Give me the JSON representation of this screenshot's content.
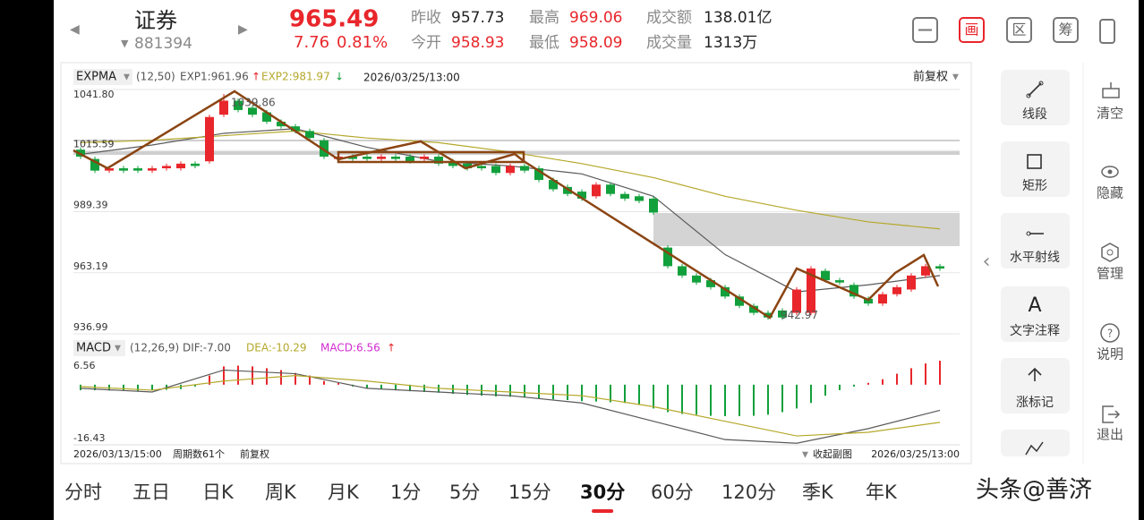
{
  "header": {
    "name": "证券",
    "code": "881394",
    "price": 965.49,
    "change": 7.76,
    "change_pct": "0.81%",
    "stats": [
      {
        "label": "昨收",
        "value": 957.73
      },
      {
        "label": "今开",
        "value": 958.93
      },
      {
        "label": "最高",
        "value": 969.06
      },
      {
        "label": "最低",
        "value": 958.09
      },
      {
        "label": "成交额",
        "value": "138.01亿"
      },
      {
        "label": "成交量",
        "value": "1313万"
      }
    ],
    "tools": [
      "画",
      "区",
      "筹"
    ]
  },
  "chart_data": [
    {
      "type": "candlestick",
      "indicator": "EXPMA",
      "params": "(12,50)",
      "time": "2026/03/25/13:00",
      "adjust": "前复权",
      "ylim": [
        936.99,
        1041.8
      ],
      "yticks": [
        {
          "value": 1041.8,
          "label": "1041.80"
        },
        1015.59,
        989.39,
        963.19,
        936.99
      ],
      "grid": true,
      "up_color": "#e8262b",
      "down_color": "#12a03c",
      "open": [
        1016,
        1012,
        1007,
        1008,
        1008,
        1007,
        1008,
        1008,
        1010,
        1011,
        1031,
        1037,
        1034,
        1032,
        1028,
        1026,
        1024,
        1020,
        1012,
        1013,
        1013,
        1012,
        1013,
        1013,
        1012,
        1013,
        1011,
        1010,
        1009,
        1009,
        1006,
        1009,
        1008,
        1003,
        1000,
        998,
        996,
        1001,
        997,
        996,
        995,
        974,
        966,
        962,
        960,
        957,
        953,
        949,
        946,
        947,
        946,
        946,
        964,
        960,
        958,
        952,
        950,
        954,
        956,
        962,
        966
      ],
      "close": [
        1013,
        1007,
        1008,
        1007,
        1007,
        1008,
        1009,
        1010,
        1009,
        1030,
        1037,
        1033,
        1031,
        1028,
        1026,
        1024,
        1021,
        1013,
        1013,
        1012,
        1012,
        1013,
        1012,
        1011,
        1013,
        1010,
        1009,
        1008,
        1008,
        1006,
        1009,
        1007,
        1003,
        999,
        997,
        995,
        1001,
        997,
        995,
        994,
        989,
        966,
        962,
        959,
        957,
        953,
        949,
        946,
        944,
        944,
        956,
        965,
        960,
        959,
        953,
        950,
        954,
        957,
        962,
        966,
        965
      ],
      "high": [
        1017,
        1013,
        1009,
        1009,
        1009,
        1009,
        1010,
        1011,
        1011,
        1031,
        1039.86,
        1038,
        1035,
        1033,
        1029,
        1027,
        1025,
        1021,
        1014,
        1014,
        1014,
        1014,
        1014,
        1014,
        1014,
        1014,
        1012,
        1011,
        1010,
        1010,
        1010,
        1010,
        1009,
        1004,
        1001,
        999,
        1002,
        1002,
        998,
        997,
        996,
        975,
        967,
        963,
        961,
        958,
        954,
        950,
        947,
        948,
        957,
        966,
        965,
        961,
        959,
        953,
        955,
        958,
        963,
        967,
        967
      ],
      "low": [
        1012,
        1006,
        1006,
        1006,
        1006,
        1006,
        1007,
        1007,
        1008,
        1010,
        1030,
        1032,
        1030,
        1027,
        1025,
        1023,
        1020,
        1012,
        1011,
        1011,
        1011,
        1011,
        1011,
        1010,
        1011,
        1009,
        1008,
        1007,
        1007,
        1005,
        1005,
        1006,
        1002,
        998,
        996,
        994,
        995,
        996,
        994,
        993,
        988,
        965,
        961,
        958,
        956,
        952,
        948,
        945,
        943,
        942.97,
        945,
        945,
        959,
        958,
        952,
        949,
        949,
        953,
        955,
        961,
        964
      ],
      "lines": [
        {
          "name": "EXP1:961.96",
          "color": "#5a5a5a",
          "x": [
            0,
            5,
            10,
            15,
            20,
            25,
            30,
            35,
            40,
            45,
            50,
            55,
            60
          ],
          "values": [
            1014,
            1018,
            1023,
            1025,
            1017,
            1011,
            1009,
            1005.6,
            996,
            971,
            955,
            958,
            962
          ]
        },
        {
          "name": "EXP2:981.97",
          "color": "#b5a82a",
          "x": [
            0,
            5,
            10,
            15,
            20,
            25,
            30,
            35,
            40,
            45,
            50,
            55,
            60
          ],
          "values": [
            1019,
            1020,
            1022,
            1024,
            1021,
            1019,
            1015,
            1010,
            1004,
            996,
            990,
            985,
            982
          ]
        }
      ]
    },
    {
      "type": "macd",
      "indicator": "MACD",
      "params": "(12,26,9)",
      "ylim": [
        -16.43,
        6.56
      ],
      "yticks": [
        6.56,
        -16.43
      ],
      "up_color": "#e8262b",
      "down_color": "#12a03c",
      "histogram": {
        "name": "MACD:6.56",
        "color": "#d22bd0",
        "values": [
          -1.5,
          -1.5,
          -1.6,
          -1.6,
          -1.7,
          -1.6,
          -1.4,
          -1.2,
          -0.5,
          2.5,
          5.0,
          5.2,
          5.0,
          4.5,
          4.0,
          3.2,
          2.5,
          1.0,
          0.5,
          -0.5,
          -1.0,
          -1.2,
          -1.5,
          -1.8,
          -2.0,
          -2.2,
          -2.5,
          -2.8,
          -3.0,
          -3.2,
          -3.3,
          -3.5,
          -3.8,
          -4.0,
          -4.2,
          -4.5,
          -4.6,
          -4.8,
          -5.0,
          -5.5,
          -6.5,
          -7.5,
          -8.0,
          -8.2,
          -8.5,
          -8.6,
          -8.6,
          -8.5,
          -8.2,
          -7.5,
          -6.5,
          -5.0,
          -3.0,
          -1.5,
          -0.5,
          0.5,
          1.5,
          3.0,
          4.5,
          5.8,
          6.56
        ]
      },
      "lines": [
        {
          "name": "DIF:-7.00",
          "color": "#5a5a5a",
          "x": [
            0,
            5,
            10,
            15,
            20,
            25,
            30,
            35,
            40,
            45,
            50,
            55,
            60
          ],
          "values": [
            -1,
            -2,
            4,
            3,
            -1,
            -2,
            -3,
            -5,
            -10,
            -15,
            -16,
            -12,
            -7
          ]
        },
        {
          "name": "DEA:-10.29",
          "color": "#b5a82a",
          "x": [
            0,
            5,
            10,
            15,
            20,
            25,
            30,
            35,
            40,
            45,
            50,
            55,
            60
          ],
          "values": [
            -0.5,
            -1.5,
            1,
            2.5,
            1,
            -1,
            -2,
            -3,
            -6,
            -10,
            -14,
            -13,
            -10.29
          ]
        }
      ]
    }
  ],
  "footer": {
    "start": "2026/03/13/15:00",
    "periods": "周期数61个",
    "adjust": "前复权",
    "collapse": "收起副图",
    "end": "2026/03/25/13:00"
  },
  "toolbar": {
    "tools": [
      "线段",
      "矩形",
      "水平射线",
      "文字注释",
      "涨标记"
    ],
    "text_icon": "A",
    "side": [
      "清空",
      "隐藏",
      "管理",
      "说明",
      "退出"
    ]
  },
  "tabs": [
    "分时",
    "五日",
    "日K",
    "周K",
    "月K",
    "1分",
    "5分",
    "15分",
    "30分",
    "60分",
    "120分",
    "季K",
    "年K"
  ],
  "active_tab": 8,
  "watermark": "头条@善济"
}
